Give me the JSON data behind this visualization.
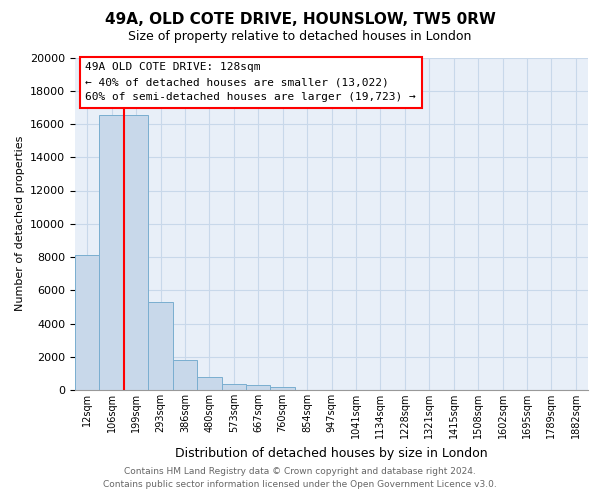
{
  "title1": "49A, OLD COTE DRIVE, HOUNSLOW, TW5 0RW",
  "title2": "Size of property relative to detached houses in London",
  "xlabel": "Distribution of detached houses by size in London",
  "ylabel": "Number of detached properties",
  "categories": [
    "12sqm",
    "106sqm",
    "199sqm",
    "293sqm",
    "386sqm",
    "480sqm",
    "573sqm",
    "667sqm",
    "760sqm",
    "854sqm",
    "947sqm",
    "1041sqm",
    "1134sqm",
    "1228sqm",
    "1321sqm",
    "1415sqm",
    "1508sqm",
    "1602sqm",
    "1695sqm",
    "1789sqm",
    "1882sqm"
  ],
  "values": [
    8150,
    16550,
    16550,
    5300,
    1820,
    760,
    350,
    280,
    200,
    0,
    0,
    0,
    0,
    0,
    0,
    0,
    0,
    0,
    0,
    0,
    0
  ],
  "bar_color": "#c8d8ea",
  "bar_edge_color": "#7aaed0",
  "grid_color": "#c8d8ea",
  "bg_color": "#e8eff8",
  "red_line_x": 1.5,
  "annotation_line1": "49A OLD COTE DRIVE: 128sqm",
  "annotation_line2": "← 40% of detached houses are smaller (13,022)",
  "annotation_line3": "60% of semi-detached houses are larger (19,723) →",
  "footer1": "Contains HM Land Registry data © Crown copyright and database right 2024.",
  "footer2": "Contains public sector information licensed under the Open Government Licence v3.0.",
  "ylim": [
    0,
    20000
  ],
  "yticks": [
    0,
    2000,
    4000,
    6000,
    8000,
    10000,
    12000,
    14000,
    16000,
    18000,
    20000
  ],
  "title1_fontsize": 11,
  "title2_fontsize": 9,
  "ylabel_fontsize": 8,
  "xlabel_fontsize": 9,
  "tick_fontsize": 8,
  "xtick_fontsize": 7,
  "footer_fontsize": 6.5,
  "annot_fontsize": 8
}
